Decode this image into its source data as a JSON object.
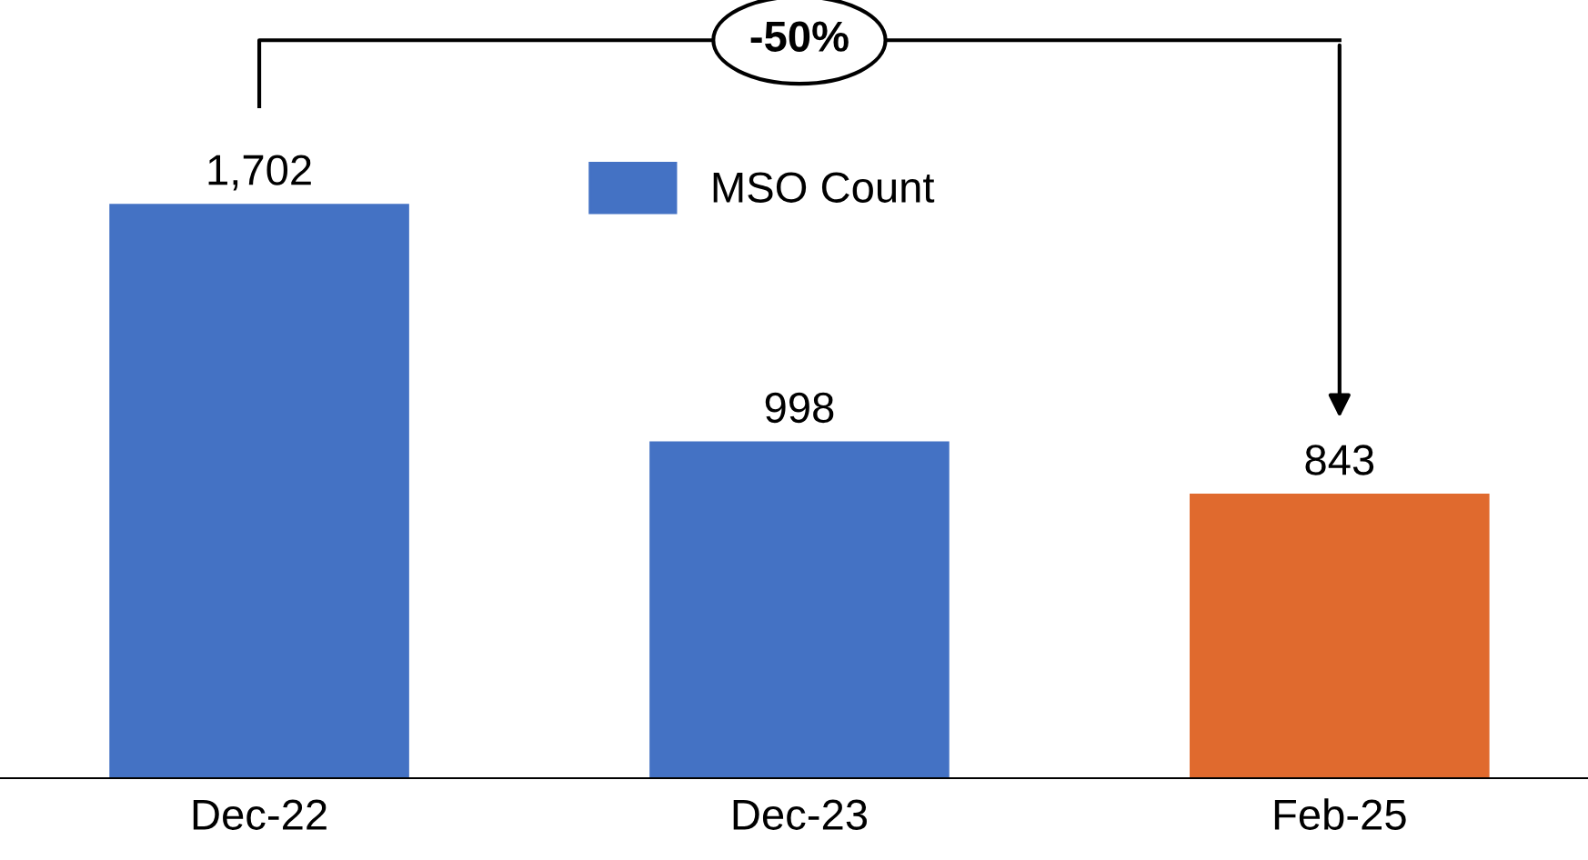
{
  "chart_data": {
    "type": "bar",
    "categories": [
      "Dec-22",
      "Dec-23",
      "Feb-25"
    ],
    "series": [
      {
        "name": "MSO Count",
        "color": "#4472c4",
        "values": [
          1702,
          998,
          843
        ],
        "colors": [
          "#4472c4",
          "#4472c4",
          "#e06a2e"
        ],
        "value_labels": [
          "1,702",
          "998",
          "843"
        ]
      }
    ],
    "legend": "top",
    "grid": false,
    "annotations": [
      "-50%"
    ]
  }
}
